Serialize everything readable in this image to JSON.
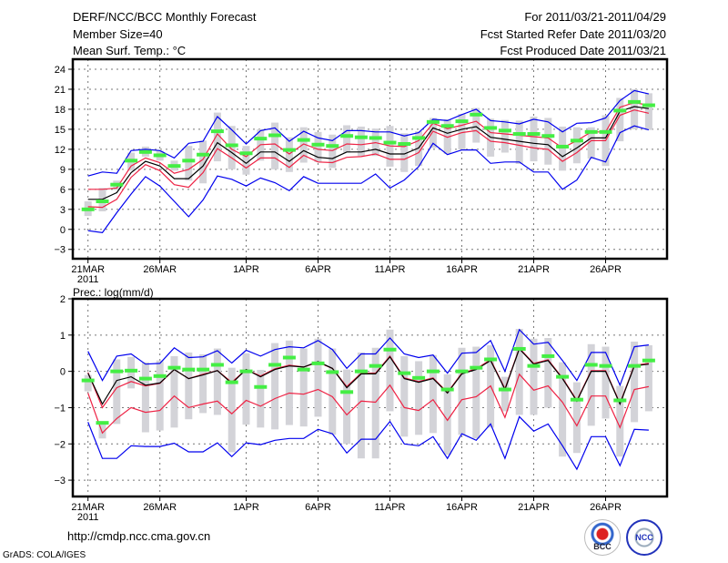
{
  "header": {
    "title": "DERF/NCC/BCC Monthly Forecast",
    "member_size": "Member Size=40",
    "variable": "Mean Surf. Temp.: °C",
    "period": "For 2011/03/21-2011/04/29",
    "start_date": "Fcst Started Refer Date 2011/03/20",
    "produced_date": "Fcst Produced Date 2011/03/21"
  },
  "footer": {
    "url": "http://cmdp.ncc.cma.gov.cn",
    "grads": "GrADS: COLA/IGES",
    "logo_bcc": "BCC",
    "logo_ncc": "NCC"
  },
  "colors": {
    "mean": "#000000",
    "spread": "#ee2244",
    "extreme": "#0000ee",
    "observed": "#44ee44",
    "box": "#d3d3d8",
    "grid": "#777777"
  },
  "chart_data": [
    {
      "type": "line",
      "title": "Mean Surf. Temp.: °C",
      "ylabel": "",
      "ylim": [
        -4.4,
        25.5
      ],
      "yticks": [
        24,
        21,
        18,
        15,
        12,
        9,
        6,
        3,
        0,
        -3
      ],
      "xticks": [
        {
          "day": 0,
          "label": "21MAR",
          "sub": "2011"
        },
        {
          "day": 5,
          "label": "26MAR"
        },
        {
          "day": 11,
          "label": "1APR"
        },
        {
          "day": 16,
          "label": "6APR"
        },
        {
          "day": 21,
          "label": "11APR"
        },
        {
          "day": 26,
          "label": "16APR"
        },
        {
          "day": 31,
          "label": "21APR"
        },
        {
          "day": 36,
          "label": "26APR"
        }
      ],
      "grid": true,
      "days": 40,
      "series": [
        {
          "name": "ensemble mean",
          "role": "mean",
          "values": [
            4.5,
            4.5,
            5.5,
            8.5,
            10.2,
            9.5,
            7.6,
            7.6,
            9.5,
            13,
            11.5,
            9.9,
            11.6,
            11.6,
            10.2,
            11.8,
            10.8,
            10.6,
            11.6,
            11.6,
            12,
            11.3,
            11.3,
            12.2,
            15.2,
            14.4,
            15,
            15.4,
            13.8,
            13.5,
            13.2,
            12.9,
            12.7,
            10.9,
            12.2,
            13.7,
            13.7,
            17.7,
            18.4,
            18.1
          ]
        },
        {
          "name": "upper spread",
          "role": "spread",
          "values": [
            6,
            6,
            6.2,
            9.5,
            10.7,
            10,
            8.4,
            9,
            10.5,
            14.3,
            12,
            10.9,
            12.7,
            12.8,
            11.3,
            12.8,
            12,
            11.8,
            12.8,
            12.7,
            13,
            12.5,
            12.4,
            13.3,
            15.9,
            15.1,
            15.6,
            16.2,
            14.5,
            14.3,
            14.1,
            13.9,
            13.7,
            12.2,
            13.3,
            14.6,
            14.6,
            18.3,
            19,
            18.6
          ]
        },
        {
          "name": "lower spread",
          "role": "spread",
          "values": [
            3.4,
            3.3,
            4.5,
            7.8,
            9.7,
            8.8,
            6.7,
            6.3,
            8.5,
            12.1,
            10.7,
            9.2,
            10.7,
            10.7,
            9.3,
            11.1,
            10.1,
            10,
            10.8,
            10.9,
            11.3,
            10.5,
            10.5,
            11.5,
            14.7,
            13.8,
            14.5,
            14.8,
            13.2,
            13,
            12.6,
            12.2,
            12,
            10.2,
            11.5,
            13.3,
            13.3,
            17.1,
            17.9,
            17.4
          ]
        },
        {
          "name": "ensemble max",
          "role": "extreme",
          "values": [
            8,
            8.6,
            8.4,
            11.8,
            12,
            11.8,
            10.7,
            12.9,
            13.2,
            16.9,
            14.9,
            12.8,
            14.8,
            15.2,
            13.2,
            14.7,
            13.7,
            13.3,
            14.8,
            14.8,
            14.6,
            14.6,
            14,
            14.5,
            16.5,
            16.3,
            17.2,
            18,
            16.3,
            16.1,
            15.8,
            16.5,
            16.1,
            14.6,
            15.9,
            16,
            16.7,
            19.3,
            20.8,
            20.3
          ]
        },
        {
          "name": "ensemble min",
          "role": "extreme",
          "values": [
            -0.2,
            -0.5,
            2.5,
            5.3,
            7.9,
            6.5,
            4.2,
            1.9,
            4.4,
            8,
            7.5,
            6.5,
            7.7,
            7,
            5.8,
            7.9,
            6.9,
            6.9,
            6.9,
            6.9,
            8.3,
            6.2,
            7.4,
            9.4,
            12.9,
            11.2,
            11.9,
            11.9,
            9.9,
            10.1,
            10.1,
            8.6,
            8.6,
            6,
            7.4,
            10.8,
            10.1,
            14.5,
            15.5,
            14.9
          ]
        }
      ],
      "observed": [
        3,
        4.2,
        6.7,
        10.3,
        11.6,
        11.1,
        9.5,
        10.3,
        11.2,
        14.7,
        12.6,
        11.4,
        13.6,
        14.1,
        11.9,
        13.4,
        12.7,
        12.5,
        14,
        13.8,
        13.7,
        13,
        12.8,
        13.7,
        16.1,
        15.5,
        16.2,
        17.2,
        15.2,
        14.8,
        14.3,
        14.3,
        14,
        12.4,
        13.3,
        14.6,
        14.6,
        17.8,
        19.1,
        18.6
      ],
      "box_low": [
        2,
        2.7,
        5.9,
        8.8,
        10.9,
        10.3,
        8.8,
        7.3,
        6.9,
        10.2,
        9,
        8.2,
        10.3,
        9,
        8.6,
        10,
        10.1,
        9.2,
        11.5,
        11,
        11,
        9.4,
        8.6,
        9.5,
        12.2,
        11.3,
        12,
        13,
        10.9,
        11.5,
        9.8,
        10.2,
        9.7,
        8.8,
        9.9,
        10.6,
        9.5,
        13.2,
        15,
        14.9
      ],
      "box_high": [
        4.2,
        6.2,
        7.3,
        11.5,
        12.4,
        11.8,
        10.3,
        12.5,
        13.3,
        17.5,
        15.5,
        12.5,
        15,
        16,
        13.8,
        15.3,
        14.6,
        14.2,
        15.6,
        15.4,
        15.1,
        15.5,
        14.4,
        14.7,
        16.7,
        16.5,
        17.3,
        18.2,
        16.6,
        16.4,
        16.3,
        16.9,
        16.7,
        15.4,
        15.3,
        15.3,
        17.1,
        19.7,
        21,
        20.4
      ]
    },
    {
      "type": "line",
      "title": "Prec.: log(mm/d)",
      "ylabel": "",
      "ylim": [
        -3.45,
        2
      ],
      "yticks": [
        2,
        1,
        0,
        -1,
        -2,
        -3
      ],
      "xticks": [
        {
          "day": 0,
          "label": "21MAR",
          "sub": "2011"
        },
        {
          "day": 5,
          "label": "26MAR"
        },
        {
          "day": 11,
          "label": "1APR"
        },
        {
          "day": 16,
          "label": "6APR"
        },
        {
          "day": 21,
          "label": "11APR"
        },
        {
          "day": 26,
          "label": "16APR"
        },
        {
          "day": 31,
          "label": "21APR"
        },
        {
          "day": 36,
          "label": "26APR"
        }
      ],
      "grid": true,
      "days": 40,
      "series": [
        {
          "name": "ensemble mean",
          "role": "mean",
          "values": [
            -0.05,
            -0.9,
            -0.25,
            -0.15,
            -0.38,
            -0.32,
            0.05,
            -0.2,
            -0.1,
            0.02,
            -0.33,
            0.05,
            -0.15,
            0.05,
            0.15,
            0.12,
            0.27,
            0.08,
            -0.45,
            -0.07,
            -0.07,
            0.4,
            -0.2,
            -0.3,
            -0.2,
            -0.6,
            -0.07,
            0.05,
            0.3,
            -0.5,
            0.62,
            0.2,
            0.3,
            -0.2,
            -0.82,
            0,
            0,
            -0.9,
            0.15,
            0.2
          ]
        },
        {
          "name": "upper spread",
          "role": "spread",
          "values": [
            -0.03,
            -1.0,
            -0.45,
            -0.28,
            -0.4,
            -0.33,
            0.05,
            -0.2,
            -0.08,
            0.02,
            -0.3,
            0.05,
            -0.13,
            0.07,
            0.17,
            0.12,
            0.25,
            0.08,
            -0.42,
            -0.05,
            -0.05,
            0.42,
            -0.18,
            -0.28,
            -0.18,
            -0.58,
            -0.05,
            0.07,
            0.32,
            -0.48,
            0.64,
            0.22,
            0.32,
            -0.18,
            -0.8,
            0.02,
            0.02,
            -0.88,
            0.17,
            0.22
          ]
        },
        {
          "name": "lower spread",
          "role": "spread",
          "values": [
            -0.6,
            -1.7,
            -1.3,
            -1.0,
            -1.13,
            -1.08,
            -0.68,
            -1.0,
            -0.9,
            -0.82,
            -1.17,
            -0.8,
            -0.96,
            -0.75,
            -0.6,
            -0.63,
            -0.5,
            -0.7,
            -1.2,
            -0.82,
            -0.85,
            -0.38,
            -1.0,
            -1.08,
            -0.78,
            -1.35,
            -0.78,
            -0.7,
            -0.4,
            -1.27,
            -0.08,
            -0.52,
            -0.4,
            -0.85,
            -1.5,
            -0.68,
            -0.68,
            -1.55,
            -0.5,
            -0.42
          ]
        },
        {
          "name": "ensemble max",
          "role": "extreme",
          "values": [
            0.55,
            -0.25,
            0.42,
            0.48,
            0.2,
            0.22,
            0.65,
            0.38,
            0.4,
            0.57,
            0.23,
            0.58,
            0.42,
            0.6,
            0.68,
            0.65,
            0.85,
            0.6,
            0.08,
            0.48,
            0.48,
            0.92,
            0.48,
            0.38,
            0.45,
            -0.05,
            0.5,
            0.52,
            0.85,
            0,
            1.15,
            0.75,
            0.8,
            0.3,
            -0.25,
            0.52,
            0.52,
            -0.38,
            0.68,
            0.73
          ]
        },
        {
          "name": "ensemble min",
          "role": "extreme",
          "values": [
            -1.4,
            -2.4,
            -2.4,
            -2.05,
            -2.07,
            -2.07,
            -1.98,
            -2.22,
            -2.22,
            -1.97,
            -2.35,
            -1.97,
            -2.02,
            -1.9,
            -1.85,
            -1.85,
            -1.6,
            -1.72,
            -2.25,
            -1.87,
            -1.87,
            -1.38,
            -2.0,
            -2.05,
            -1.8,
            -2.4,
            -1.72,
            -1.9,
            -1.45,
            -2.4,
            -1.25,
            -1.65,
            -1.45,
            -2.05,
            -2.7,
            -1.8,
            -1.8,
            -2.6,
            -1.6,
            -1.62
          ]
        }
      ],
      "observed": [
        -0.25,
        -1.42,
        0,
        0.02,
        -0.2,
        -0.13,
        0.1,
        0.05,
        0.05,
        0.18,
        -0.3,
        0,
        -0.43,
        0.18,
        0.38,
        0.05,
        0.22,
        -0.02,
        -0.57,
        0,
        0.15,
        0.6,
        -0.05,
        -0.18,
        0,
        -0.5,
        0,
        0.1,
        0.33,
        -0.5,
        0.62,
        0.15,
        0.42,
        -0.15,
        -0.78,
        0.18,
        0.15,
        -0.8,
        0.15,
        0.3
      ],
      "box_low": [
        -0.55,
        -1.85,
        -1.45,
        -0.47,
        -1.68,
        -1.63,
        -1.55,
        -1.32,
        -1.15,
        -1.2,
        -2.23,
        -1.47,
        -1.55,
        -1.6,
        -1.48,
        -1.52,
        -1.25,
        -1.75,
        -2,
        -2.4,
        -2.4,
        -1.1,
        -1.8,
        -1.75,
        -1.7,
        -2.3,
        -1.75,
        -1.85,
        -1.55,
        -1.1,
        -1.2,
        -1.2,
        -1,
        -2.35,
        -2.25,
        -1.5,
        -1.3,
        -2.35,
        -1.4,
        -1.1
      ],
      "box_high": [
        -0.1,
        -1.4,
        0.33,
        0.4,
        0.25,
        0.3,
        0.42,
        0.52,
        0.47,
        0.63,
        0.1,
        0.5,
        0.04,
        0.78,
        0.85,
        0.63,
        0.9,
        0.63,
        0.05,
        0.52,
        0.65,
        1.15,
        0.42,
        0.28,
        0.45,
        -0.08,
        0.65,
        0.68,
        0.72,
        -0.15,
        1.17,
        0.9,
        0.92,
        0.25,
        -0.3,
        0.75,
        0.68,
        -0.4,
        0.82,
        0.72
      ]
    }
  ]
}
